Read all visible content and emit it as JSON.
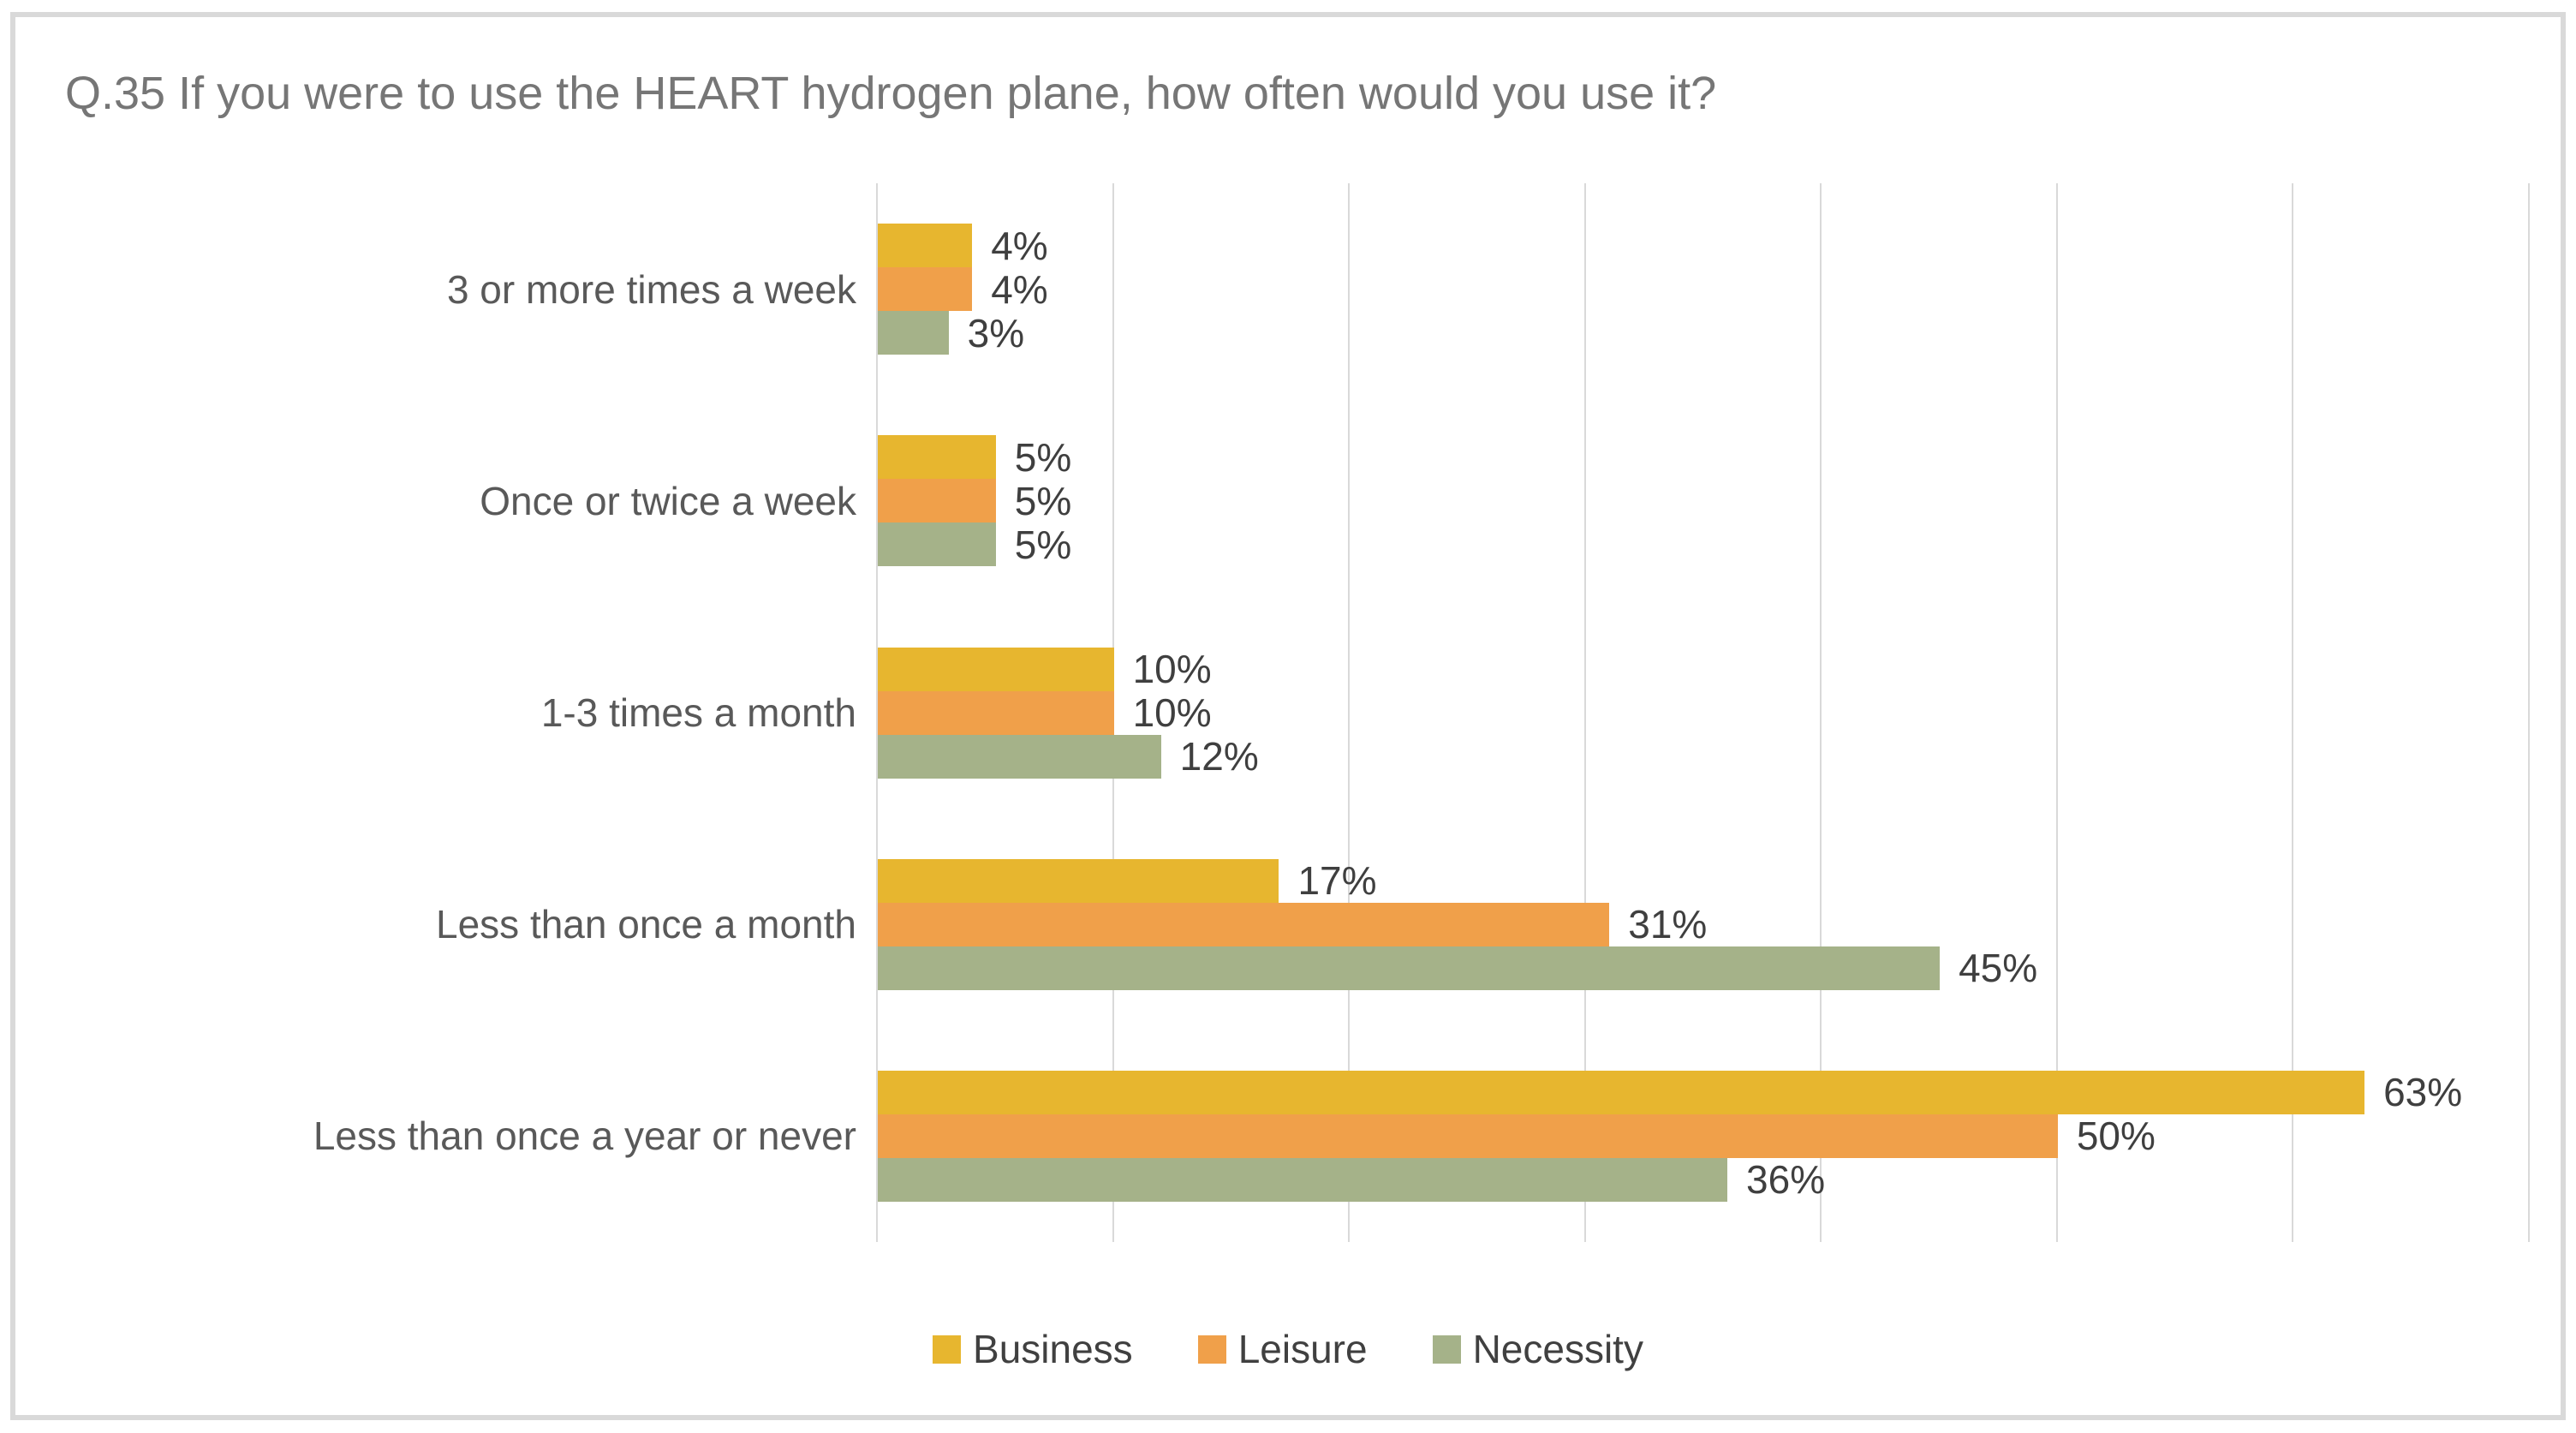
{
  "title": "Q.35 If you were to use the HEART hydrogen plane, how often would you use it?",
  "chart_data": {
    "type": "bar",
    "orientation": "horizontal",
    "title": "Q.35 If you were to use the HEART hydrogen plane, how often would you use it?",
    "categories": [
      "3 or more times a week",
      "Once or twice a week",
      "1-3 times a month",
      "Less than once a month",
      "Less than once a year or never"
    ],
    "series": [
      {
        "name": "Business",
        "color": "#E7B62F",
        "values": [
          4,
          5,
          10,
          17,
          63
        ]
      },
      {
        "name": "Leisure",
        "color": "#F0A04A",
        "values": [
          4,
          5,
          10,
          31,
          50
        ]
      },
      {
        "name": "Necessity",
        "color": "#A5B289",
        "values": [
          3,
          5,
          12,
          45,
          36
        ]
      }
    ],
    "data_labels": [
      "4%",
      "5%",
      "10%",
      "17%",
      "63%",
      "4%",
      "5%",
      "10%",
      "31%",
      "50%",
      "3%",
      "5%",
      "12%",
      "45%",
      "36%"
    ],
    "value_suffix": "%",
    "xlabel": "",
    "ylabel": "",
    "xlim": [
      0,
      70
    ],
    "gridlines_percent": [
      0,
      10,
      20,
      30,
      40,
      50,
      60,
      70
    ],
    "grid": "vertical-only",
    "tick_labels_visible": false,
    "legend_position": "bottom-center",
    "legend": [
      "Business",
      "Leisure",
      "Necessity"
    ]
  },
  "colors": {
    "frame_border": "#D9D9D9",
    "gridline": "#D9D9D9",
    "title_text": "#767676",
    "category_text": "#595959",
    "value_text": "#3F3F3F",
    "legend_text": "#404040",
    "background": "#FFFFFF"
  }
}
